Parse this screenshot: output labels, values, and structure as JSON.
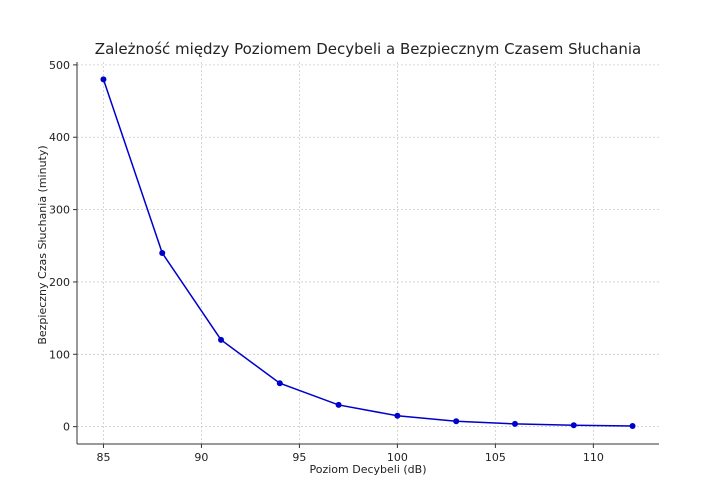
{
  "chart_data": {
    "type": "line",
    "title": "Zależność między Poziomem Decybeli a Bezpiecznym Czasem Słuchania",
    "xlabel": "Poziom Decybeli (dB)",
    "ylabel": "Bezpieczny Czas Słuchania (minuty)",
    "xlim": [
      83.65,
      113.35
    ],
    "ylim": [
      -24,
      504
    ],
    "xticks": [
      85,
      90,
      95,
      100,
      105,
      110
    ],
    "yticks": [
      0,
      100,
      200,
      300,
      400,
      500
    ],
    "grid": true,
    "series": [
      {
        "color": "#0000cc",
        "marker": "circle",
        "x": [
          85,
          88,
          91,
          94,
          97,
          100,
          103,
          106,
          109,
          112
        ],
        "y": [
          480,
          240,
          120,
          60,
          30,
          15,
          7.5,
          3.75,
          1.875,
          0.9375
        ]
      }
    ]
  }
}
